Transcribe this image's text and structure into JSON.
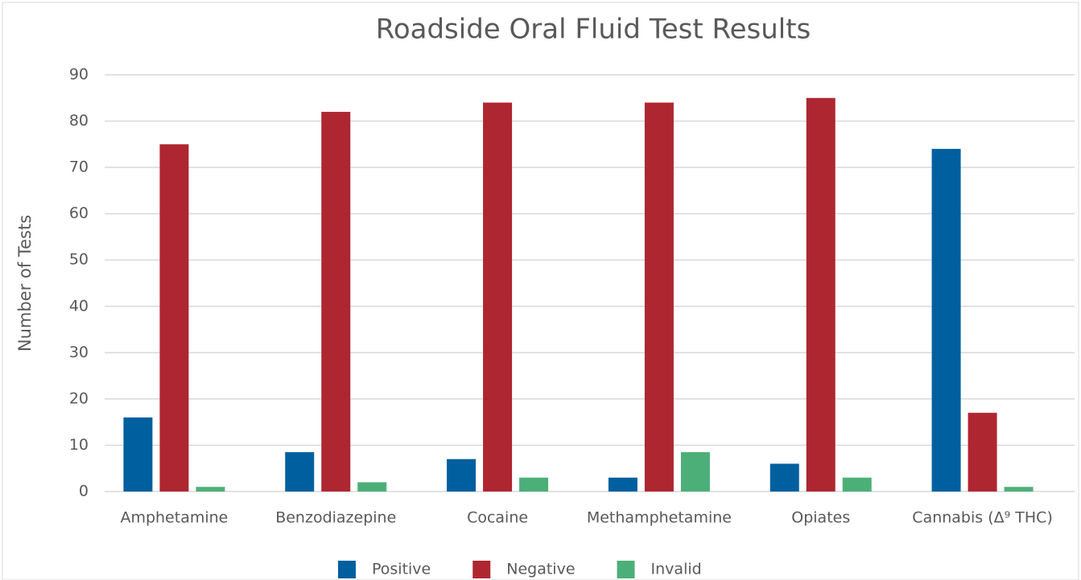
{
  "chart_data": {
    "type": "bar",
    "title": "Roadside Oral Fluid Test Results",
    "y_label": "Number of Tests",
    "categories": [
      "Amphetamine",
      "Benzodiazepine",
      "Cocaine",
      "Methamphetamine",
      "Opiates",
      "Cannabis (Δ⁹ THC)"
    ],
    "series": [
      {
        "name": "Positive",
        "color": "#005f9e",
        "values": [
          16,
          8.5,
          7,
          3,
          6,
          74
        ]
      },
      {
        "name": "Negative",
        "color": "#ae2630",
        "values": [
          75,
          82,
          84,
          84,
          85,
          17
        ]
      },
      {
        "name": "Invalid",
        "color": "#4caf78",
        "values": [
          1,
          2,
          3,
          8.5,
          3,
          1
        ]
      }
    ],
    "ylim": [
      0,
      90
    ],
    "yticks": [
      0,
      10,
      20,
      30,
      40,
      50,
      60,
      70,
      80,
      90
    ],
    "grid": true,
    "legend": "bottom"
  }
}
